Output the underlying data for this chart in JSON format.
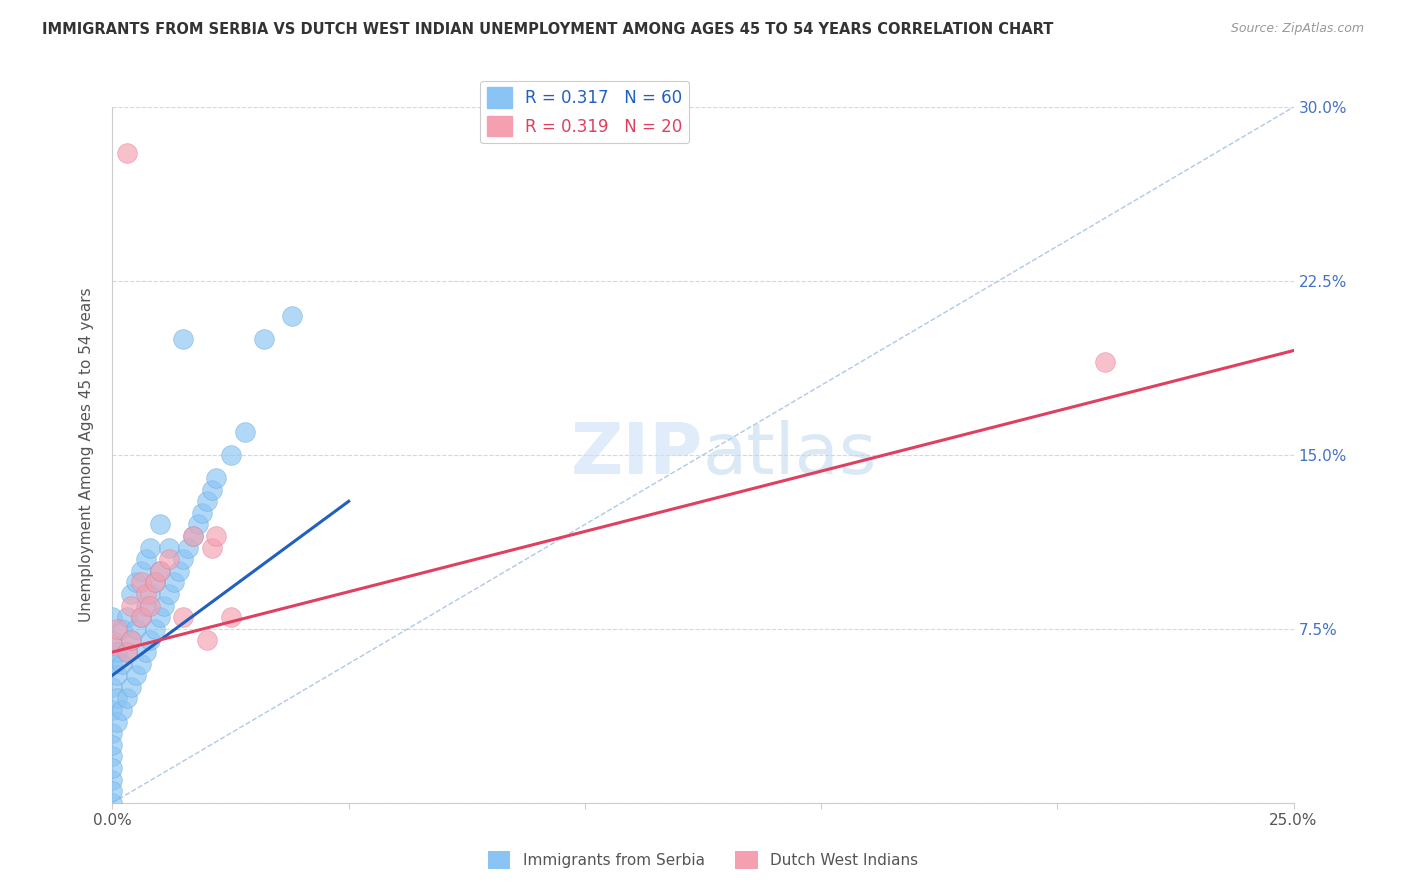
{
  "title": "IMMIGRANTS FROM SERBIA VS DUTCH WEST INDIAN UNEMPLOYMENT AMONG AGES 45 TO 54 YEARS CORRELATION CHART",
  "source": "Source: ZipAtlas.com",
  "ylabel": "Unemployment Among Ages 45 to 54 years",
  "xlim": [
    0.0,
    0.25
  ],
  "ylim": [
    0.0,
    0.3
  ],
  "xticks": [
    0.0,
    0.05,
    0.1,
    0.15,
    0.2,
    0.25
  ],
  "xtick_labels": [
    "0.0%",
    "",
    "",
    "",
    "",
    "25.0%"
  ],
  "ytick_labels_right": [
    "",
    "7.5%",
    "15.0%",
    "22.5%",
    "30.0%"
  ],
  "yticks_right": [
    0.0,
    0.075,
    0.15,
    0.225,
    0.3
  ],
  "serbia_color": "#89c4f4",
  "dutch_color": "#f4a0b0",
  "serbia_line_color": "#2060c0",
  "dutch_line_color": "#e04060",
  "dashed_line_color": "#b0c8e8",
  "legend_R_serbia": "R = 0.317",
  "legend_N_serbia": "N = 60",
  "legend_R_dutch": "R = 0.319",
  "legend_N_dutch": "N = 20",
  "serbia_line_x": [
    0.0,
    0.05
  ],
  "serbia_line_y_start": 0.055,
  "serbia_line_y_end": 0.13,
  "dutch_line_x": [
    0.0,
    0.25
  ],
  "dutch_line_y_start": 0.065,
  "dutch_line_y_end": 0.195,
  "background_color": "#ffffff",
  "grid_color": "#d8d8d8",
  "serbia_points_x": [
    0.0,
    0.0,
    0.0,
    0.0,
    0.0,
    0.0,
    0.0,
    0.0,
    0.0,
    0.0,
    0.0,
    0.0,
    0.001,
    0.001,
    0.001,
    0.001,
    0.002,
    0.002,
    0.002,
    0.003,
    0.003,
    0.003,
    0.004,
    0.004,
    0.004,
    0.005,
    0.005,
    0.005,
    0.006,
    0.006,
    0.006,
    0.007,
    0.007,
    0.007,
    0.008,
    0.008,
    0.008,
    0.009,
    0.009,
    0.01,
    0.01,
    0.01,
    0.011,
    0.012,
    0.012,
    0.013,
    0.014,
    0.015,
    0.015,
    0.016,
    0.017,
    0.018,
    0.019,
    0.02,
    0.021,
    0.022,
    0.025,
    0.028,
    0.032,
    0.038
  ],
  "serbia_points_y": [
    0.0,
    0.01,
    0.02,
    0.03,
    0.04,
    0.05,
    0.06,
    0.07,
    0.08,
    0.005,
    0.015,
    0.025,
    0.035,
    0.045,
    0.055,
    0.065,
    0.04,
    0.06,
    0.075,
    0.045,
    0.065,
    0.08,
    0.05,
    0.07,
    0.09,
    0.055,
    0.075,
    0.095,
    0.06,
    0.08,
    0.1,
    0.065,
    0.085,
    0.105,
    0.07,
    0.09,
    0.11,
    0.075,
    0.095,
    0.08,
    0.1,
    0.12,
    0.085,
    0.09,
    0.11,
    0.095,
    0.1,
    0.105,
    0.2,
    0.11,
    0.115,
    0.12,
    0.125,
    0.13,
    0.135,
    0.14,
    0.15,
    0.16,
    0.2,
    0.21
  ],
  "dutch_points_x": [
    0.003,
    0.0,
    0.001,
    0.003,
    0.004,
    0.004,
    0.006,
    0.006,
    0.007,
    0.008,
    0.009,
    0.01,
    0.012,
    0.015,
    0.017,
    0.02,
    0.021,
    0.022,
    0.025,
    0.21
  ],
  "dutch_points_y": [
    0.28,
    0.068,
    0.075,
    0.065,
    0.07,
    0.085,
    0.08,
    0.095,
    0.09,
    0.085,
    0.095,
    0.1,
    0.105,
    0.08,
    0.115,
    0.07,
    0.11,
    0.115,
    0.08,
    0.19
  ]
}
